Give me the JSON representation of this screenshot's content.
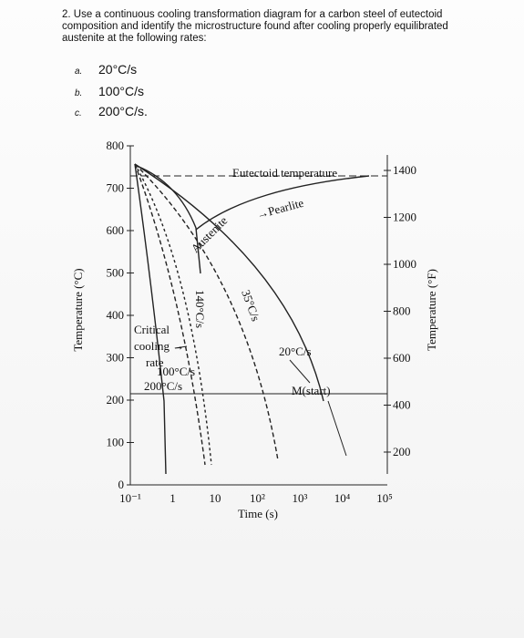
{
  "question": {
    "text": "2. Use a continuous cooling transformation diagram for a carbon steel of eutectoid composition and identify the microstructure found after cooling properly equilibrated austenite at the following rates:",
    "options": [
      {
        "marker": "a.",
        "text": "20°C/s"
      },
      {
        "marker": "b.",
        "text": "100°C/s"
      },
      {
        "marker": "c.",
        "text": "200°C/s."
      }
    ]
  },
  "diagram": {
    "left_axis_label": "Temperature (°C)",
    "right_axis_label": "Temperature (°F)",
    "x_axis_label": "Time (s)",
    "left_ticks": [
      "800",
      "700",
      "600",
      "500",
      "400",
      "300",
      "200",
      "100",
      "0"
    ],
    "right_ticks": [
      "1400",
      "1200",
      "1000",
      "800",
      "600",
      "400",
      "200"
    ],
    "x_ticks": [
      "10⁻¹",
      "1",
      "10",
      "10²",
      "10³",
      "10⁴",
      "10⁵"
    ],
    "annotations": {
      "eutectoid": "Eutectoid temperature",
      "austenite": "Austenite",
      "pearlite": "→Pearlite",
      "critical_1": "Critical",
      "critical_2": "cooling →",
      "critical_3": "rate",
      "rate_140": "140°C/s",
      "rate_35": "35°C/s",
      "rate_20": "20°C/s",
      "rate_100": "100°C/s",
      "rate_200": "200°C/s",
      "m_start": "M(start)"
    }
  }
}
